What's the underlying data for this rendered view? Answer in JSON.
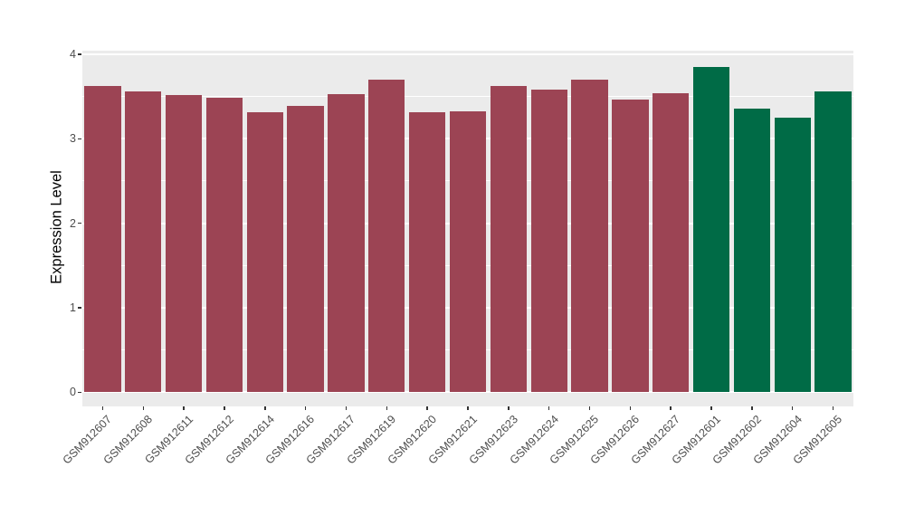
{
  "chart_data": {
    "type": "bar",
    "title": "",
    "xlabel": "",
    "ylabel": "Expression Level",
    "categories": [
      "GSM912607",
      "GSM912608",
      "GSM912611",
      "GSM912612",
      "GSM912614",
      "GSM912616",
      "GSM912617",
      "GSM912619",
      "GSM912620",
      "GSM912621",
      "GSM912623",
      "GSM912624",
      "GSM912625",
      "GSM912626",
      "GSM912627",
      "GSM912601",
      "GSM912602",
      "GSM912604",
      "GSM912605"
    ],
    "values": [
      3.62,
      3.56,
      3.52,
      3.49,
      3.31,
      3.39,
      3.53,
      3.7,
      3.31,
      3.33,
      3.62,
      3.58,
      3.7,
      3.46,
      3.54,
      3.85,
      3.36,
      3.25,
      3.56
    ],
    "bar_colors": [
      "#9C4454",
      "#9C4454",
      "#9C4454",
      "#9C4454",
      "#9C4454",
      "#9C4454",
      "#9C4454",
      "#9C4454",
      "#9C4454",
      "#9C4454",
      "#9C4454",
      "#9C4454",
      "#9C4454",
      "#9C4454",
      "#9C4454",
      "#006B46",
      "#006B46",
      "#006B46",
      "#006B46"
    ],
    "ylim": [
      0,
      4
    ],
    "yticks_major": [
      0,
      1,
      2,
      3,
      4
    ],
    "yticks_minor": [
      0.5,
      1.5,
      2.5,
      3.5
    ],
    "bar_width_fraction": 0.9,
    "x_tick_angle": -45,
    "legend_position": "none",
    "grid": "on",
    "styles": {
      "panel_bg": "#EBEBEB",
      "grid_major_color": "#FFFFFF",
      "grid_minor_color": "#FFFFFF",
      "tick_text_color": "#4D4D4D",
      "tick_mark_color": "#333333",
      "axis_title_color": "#000000",
      "figure_bg": "#FFFFFF"
    }
  }
}
